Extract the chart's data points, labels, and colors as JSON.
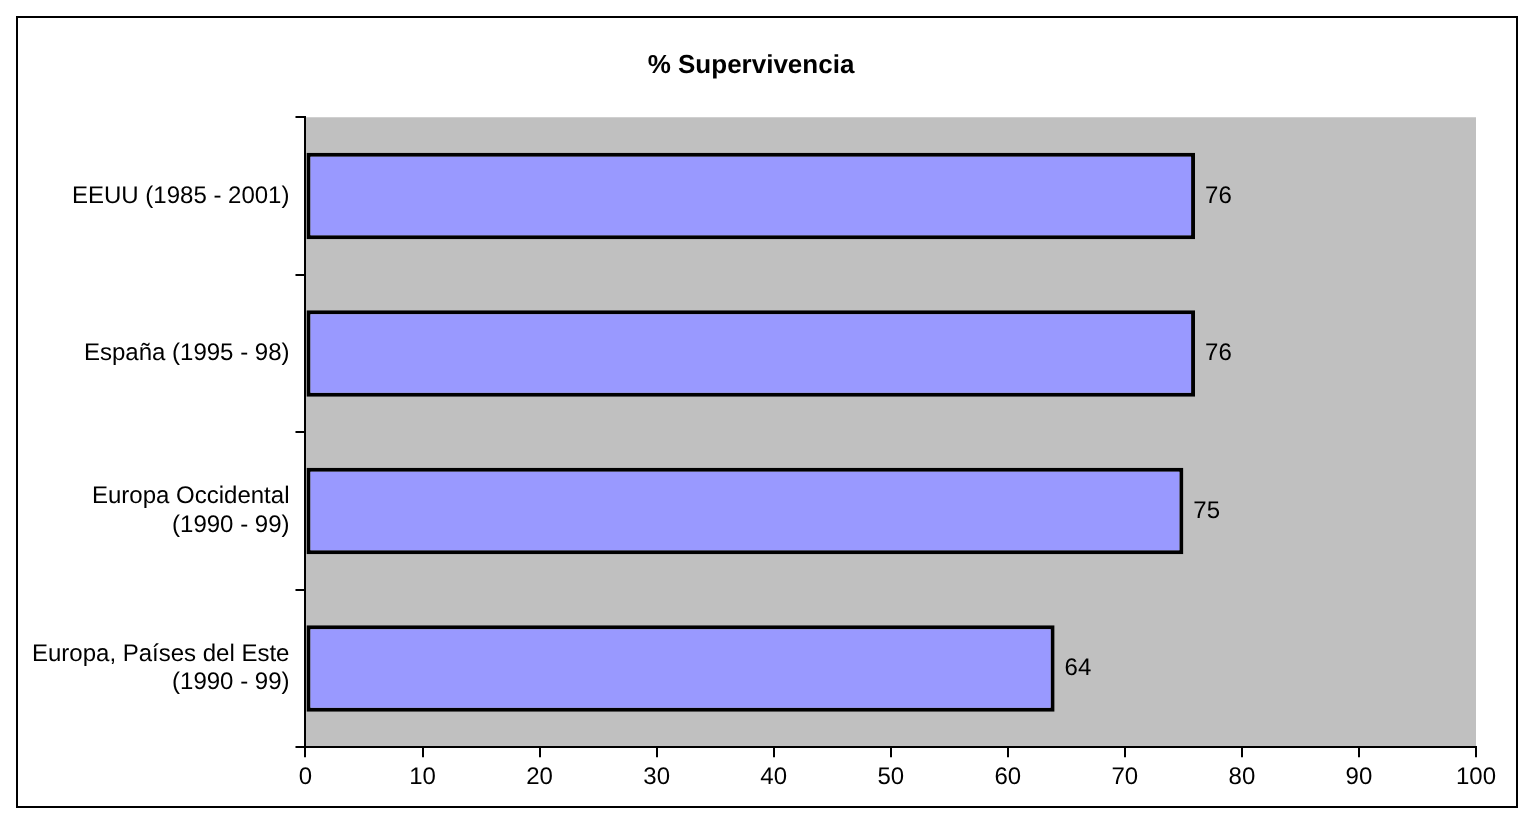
{
  "chart_data": {
    "type": "bar",
    "orientation": "horizontal",
    "title": "% Supervivencia",
    "categories": [
      "EEUU (1985 - 2001)",
      "España (1995 - 98)",
      "Europa Occidental (1990 - 99)",
      "Europa, Países del Este (1990 - 99)"
    ],
    "values": [
      76,
      76,
      75,
      64
    ],
    "color": "#9999ff",
    "xlim": [
      0,
      100
    ],
    "xticks": [
      0,
      10,
      20,
      30,
      40,
      50,
      60,
      70,
      80,
      90,
      100
    ],
    "grid": false,
    "legend": false,
    "data_labels": true
  }
}
